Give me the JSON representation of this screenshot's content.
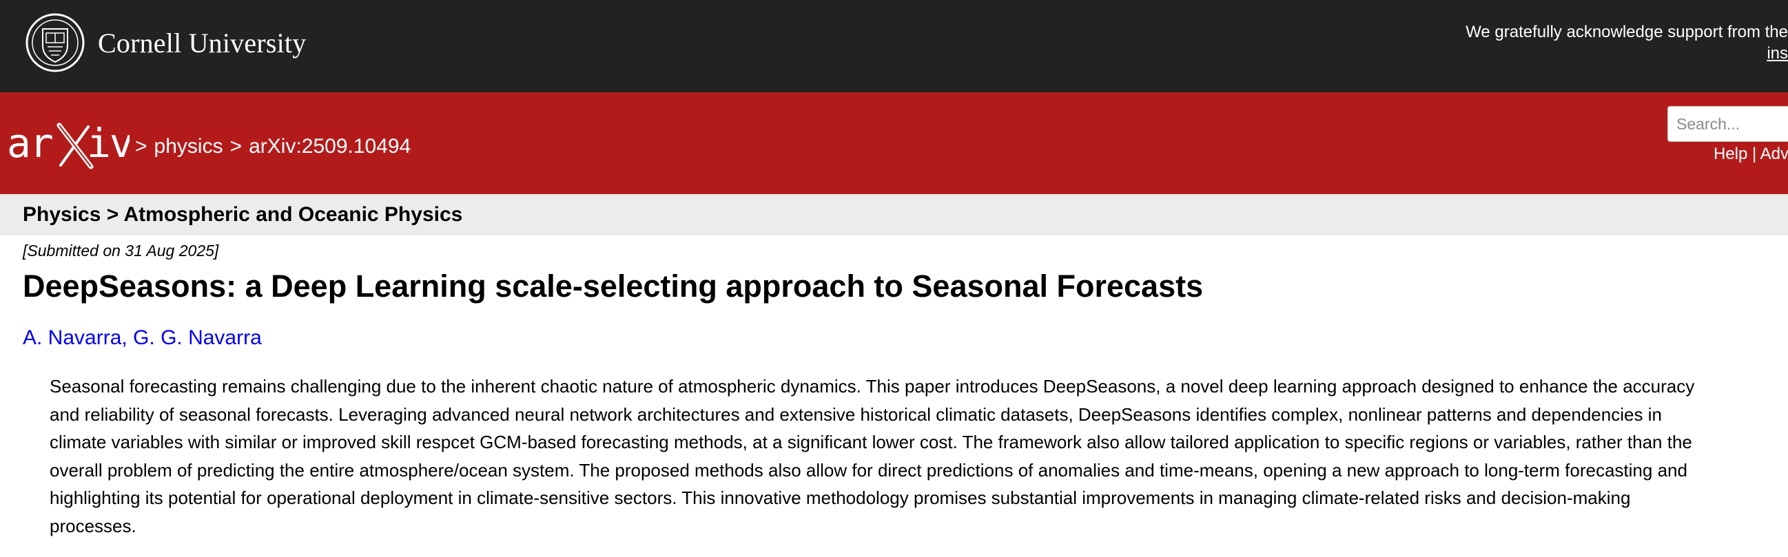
{
  "cornell": {
    "name": "Cornell University",
    "ack_line1": "We gratefully acknowledge support from the",
    "ack_line2": "ins"
  },
  "arxiv": {
    "logo_text": "arXiv",
    "breadcrumb": {
      "sep1": ">",
      "category": "physics",
      "sep2": ">",
      "paper_id": "arXiv:2509.10494"
    },
    "search_placeholder": "Search...",
    "links": {
      "help": "Help",
      "divider": "|",
      "advanced": "Adva"
    }
  },
  "subheader": {
    "title": "Physics > Atmospheric and Oceanic Physics"
  },
  "paper": {
    "submitted": "[Submitted on 31 Aug 2025]",
    "title": "DeepSeasons: a Deep Learning scale-selecting approach to Seasonal Forecasts",
    "authors": [
      "A. Navarra",
      "G. G. Navarra"
    ],
    "author_sep": ", ",
    "abstract": "Seasonal forecasting remains challenging due to the inherent chaotic nature of atmospheric dynamics. This paper introduces DeepSeasons, a novel deep learning approach designed to enhance the accuracy and reliability of seasonal forecasts. Leveraging advanced neural network architectures and extensive historical climatic datasets, DeepSeasons identifies complex, nonlinear patterns and dependencies in climate variables with similar or improved skill respcet GCM-based forecasting methods, at a significant lower cost. The framework also allow tailored application to specific regions or variables, rather than the overall problem of predicting the entire atmosphere/ocean system. The proposed methods also allow for direct predictions of anomalies and time-means, opening a new approach to long-term forecasting and highlighting its potential for operational deployment in climate-sensitive sectors. This innovative methodology promises substantial improvements in managing climate-related risks and decision-making processes."
  },
  "colors": {
    "cornell_bar": "#222222",
    "arxiv_red": "#b31b1b",
    "subheader_bg": "#ececec",
    "link_blue": "#0000ee"
  },
  "icons": {
    "seal": "cornell-seal-icon",
    "logo": "arxiv-logo-icon"
  }
}
